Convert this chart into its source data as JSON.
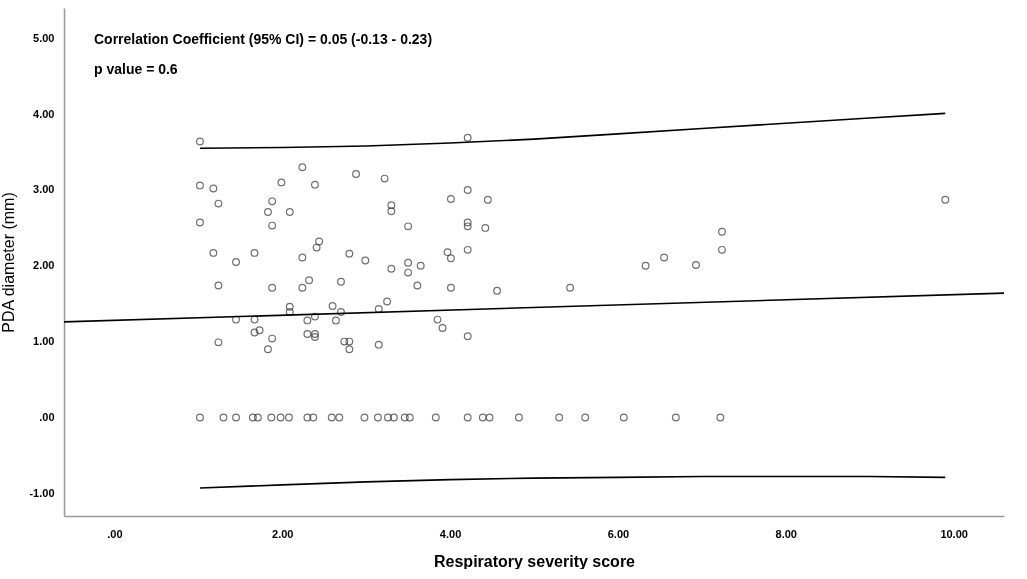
{
  "chart_data": {
    "type": "scatter",
    "xlabel": "Respiratory severity score",
    "ylabel": "PDA diameter (mm)",
    "annotations": [
      "Correlation Coefficient (95% CI) = 0.05 (-0.13 - 0.23)",
      "p value = 0.6"
    ],
    "xlim": [
      -0.6,
      10.6
    ],
    "ylim": [
      -1.3,
      5.4
    ],
    "xticks": [
      {
        "value": 0,
        "label": ".00"
      },
      {
        "value": 2,
        "label": "2.00"
      },
      {
        "value": 4,
        "label": "4.00"
      },
      {
        "value": 6,
        "label": "6.00"
      },
      {
        "value": 8,
        "label": "8.00"
      },
      {
        "value": 10,
        "label": "10.00"
      }
    ],
    "yticks": [
      {
        "value": -1,
        "label": "-1.00"
      },
      {
        "value": 0,
        "label": ".00"
      },
      {
        "value": 1,
        "label": "1.00"
      },
      {
        "value": 2,
        "label": "2.00"
      },
      {
        "value": 3,
        "label": "3.00"
      },
      {
        "value": 4,
        "label": "4.00"
      },
      {
        "value": 5,
        "label": "5.00"
      }
    ],
    "grid": false,
    "series": [
      {
        "marker": "circle",
        "color": "#333333",
        "x": [
          1.02,
          4.21,
          2.24,
          2.88,
          3.22,
          1.02,
          1.18,
          1.99,
          2.39,
          4.21,
          4.01,
          1.24,
          1.88,
          1.83,
          2.09,
          3.3,
          3.3,
          1.02,
          1.88,
          3.5,
          4.21,
          4.21,
          1.18,
          1.45,
          1.67,
          2.24,
          2.44,
          2.41,
          2.8,
          2.99,
          3.3,
          3.5,
          3.5,
          3.65,
          3.97,
          4.01,
          4.21,
          1.24,
          1.88,
          2.24,
          2.32,
          2.7,
          3.61,
          4.01,
          2.09,
          2.09,
          2.6,
          2.7,
          3.25,
          3.15,
          1.45,
          1.67,
          2.3,
          2.39,
          2.64,
          3.85,
          3.91,
          1.67,
          1.73,
          1.24,
          1.88,
          1.83,
          2.3,
          2.39,
          2.39,
          2.74,
          2.8,
          2.8,
          3.15,
          4.21,
          4.45,
          4.42,
          4.56,
          5.43,
          6.33,
          6.55,
          6.93,
          7.24,
          7.24,
          9.9,
          1.02,
          1.3,
          1.45,
          1.65,
          1.71,
          1.87,
          1.98,
          2.08,
          2.3,
          2.37,
          2.59,
          2.68,
          2.98,
          3.14,
          3.26,
          3.33,
          3.46,
          3.52,
          3.83,
          4.21,
          4.39,
          4.47,
          4.82,
          5.3,
          5.61,
          6.07,
          6.69,
          7.22
        ],
        "values": [
          3.64,
          3.69,
          3.3,
          3.21,
          3.15,
          3.06,
          3.02,
          3.1,
          3.07,
          3.0,
          2.88,
          2.82,
          2.85,
          2.71,
          2.71,
          2.8,
          2.72,
          2.57,
          2.53,
          2.52,
          2.57,
          2.52,
          2.17,
          2.05,
          2.17,
          2.11,
          2.32,
          2.24,
          2.16,
          2.07,
          1.96,
          2.04,
          1.91,
          2.0,
          2.18,
          2.1,
          2.21,
          1.74,
          1.71,
          1.71,
          1.81,
          1.79,
          1.74,
          1.71,
          1.46,
          1.39,
          1.47,
          1.39,
          1.53,
          1.43,
          1.29,
          1.29,
          1.28,
          1.33,
          1.28,
          1.29,
          1.18,
          1.12,
          1.15,
          0.99,
          1.04,
          0.9,
          1.1,
          1.1,
          1.06,
          1.0,
          1.0,
          0.9,
          0.96,
          1.07,
          2.87,
          2.5,
          1.67,
          1.71,
          2.0,
          2.11,
          2.01,
          2.45,
          2.21,
          2.87,
          0,
          0,
          0,
          0,
          0,
          0,
          0,
          0,
          0,
          0,
          0,
          0,
          0,
          0,
          0,
          0,
          0,
          0,
          0,
          0,
          0,
          0,
          0,
          0,
          0,
          0,
          0,
          0
        ]
      },
      {
        "type": "line",
        "color": "#000000",
        "x": [
          -0.6,
          10.6
        ],
        "values": [
          1.26,
          1.64
        ]
      },
      {
        "type": "line",
        "color": "#000000",
        "x": [
          1.02,
          2,
          3,
          4,
          5,
          6,
          7,
          8,
          9,
          9.9
        ],
        "values": [
          3.55,
          3.56,
          3.58,
          3.62,
          3.67,
          3.74,
          3.81,
          3.88,
          3.95,
          4.01
        ]
      },
      {
        "type": "line",
        "color": "#000000",
        "x": [
          1.02,
          2,
          3,
          4,
          5,
          6,
          7,
          8,
          9,
          9.9
        ],
        "values": [
          -0.93,
          -0.89,
          -0.85,
          -0.82,
          -0.8,
          -0.79,
          -0.78,
          -0.78,
          -0.78,
          -0.79
        ]
      }
    ]
  }
}
